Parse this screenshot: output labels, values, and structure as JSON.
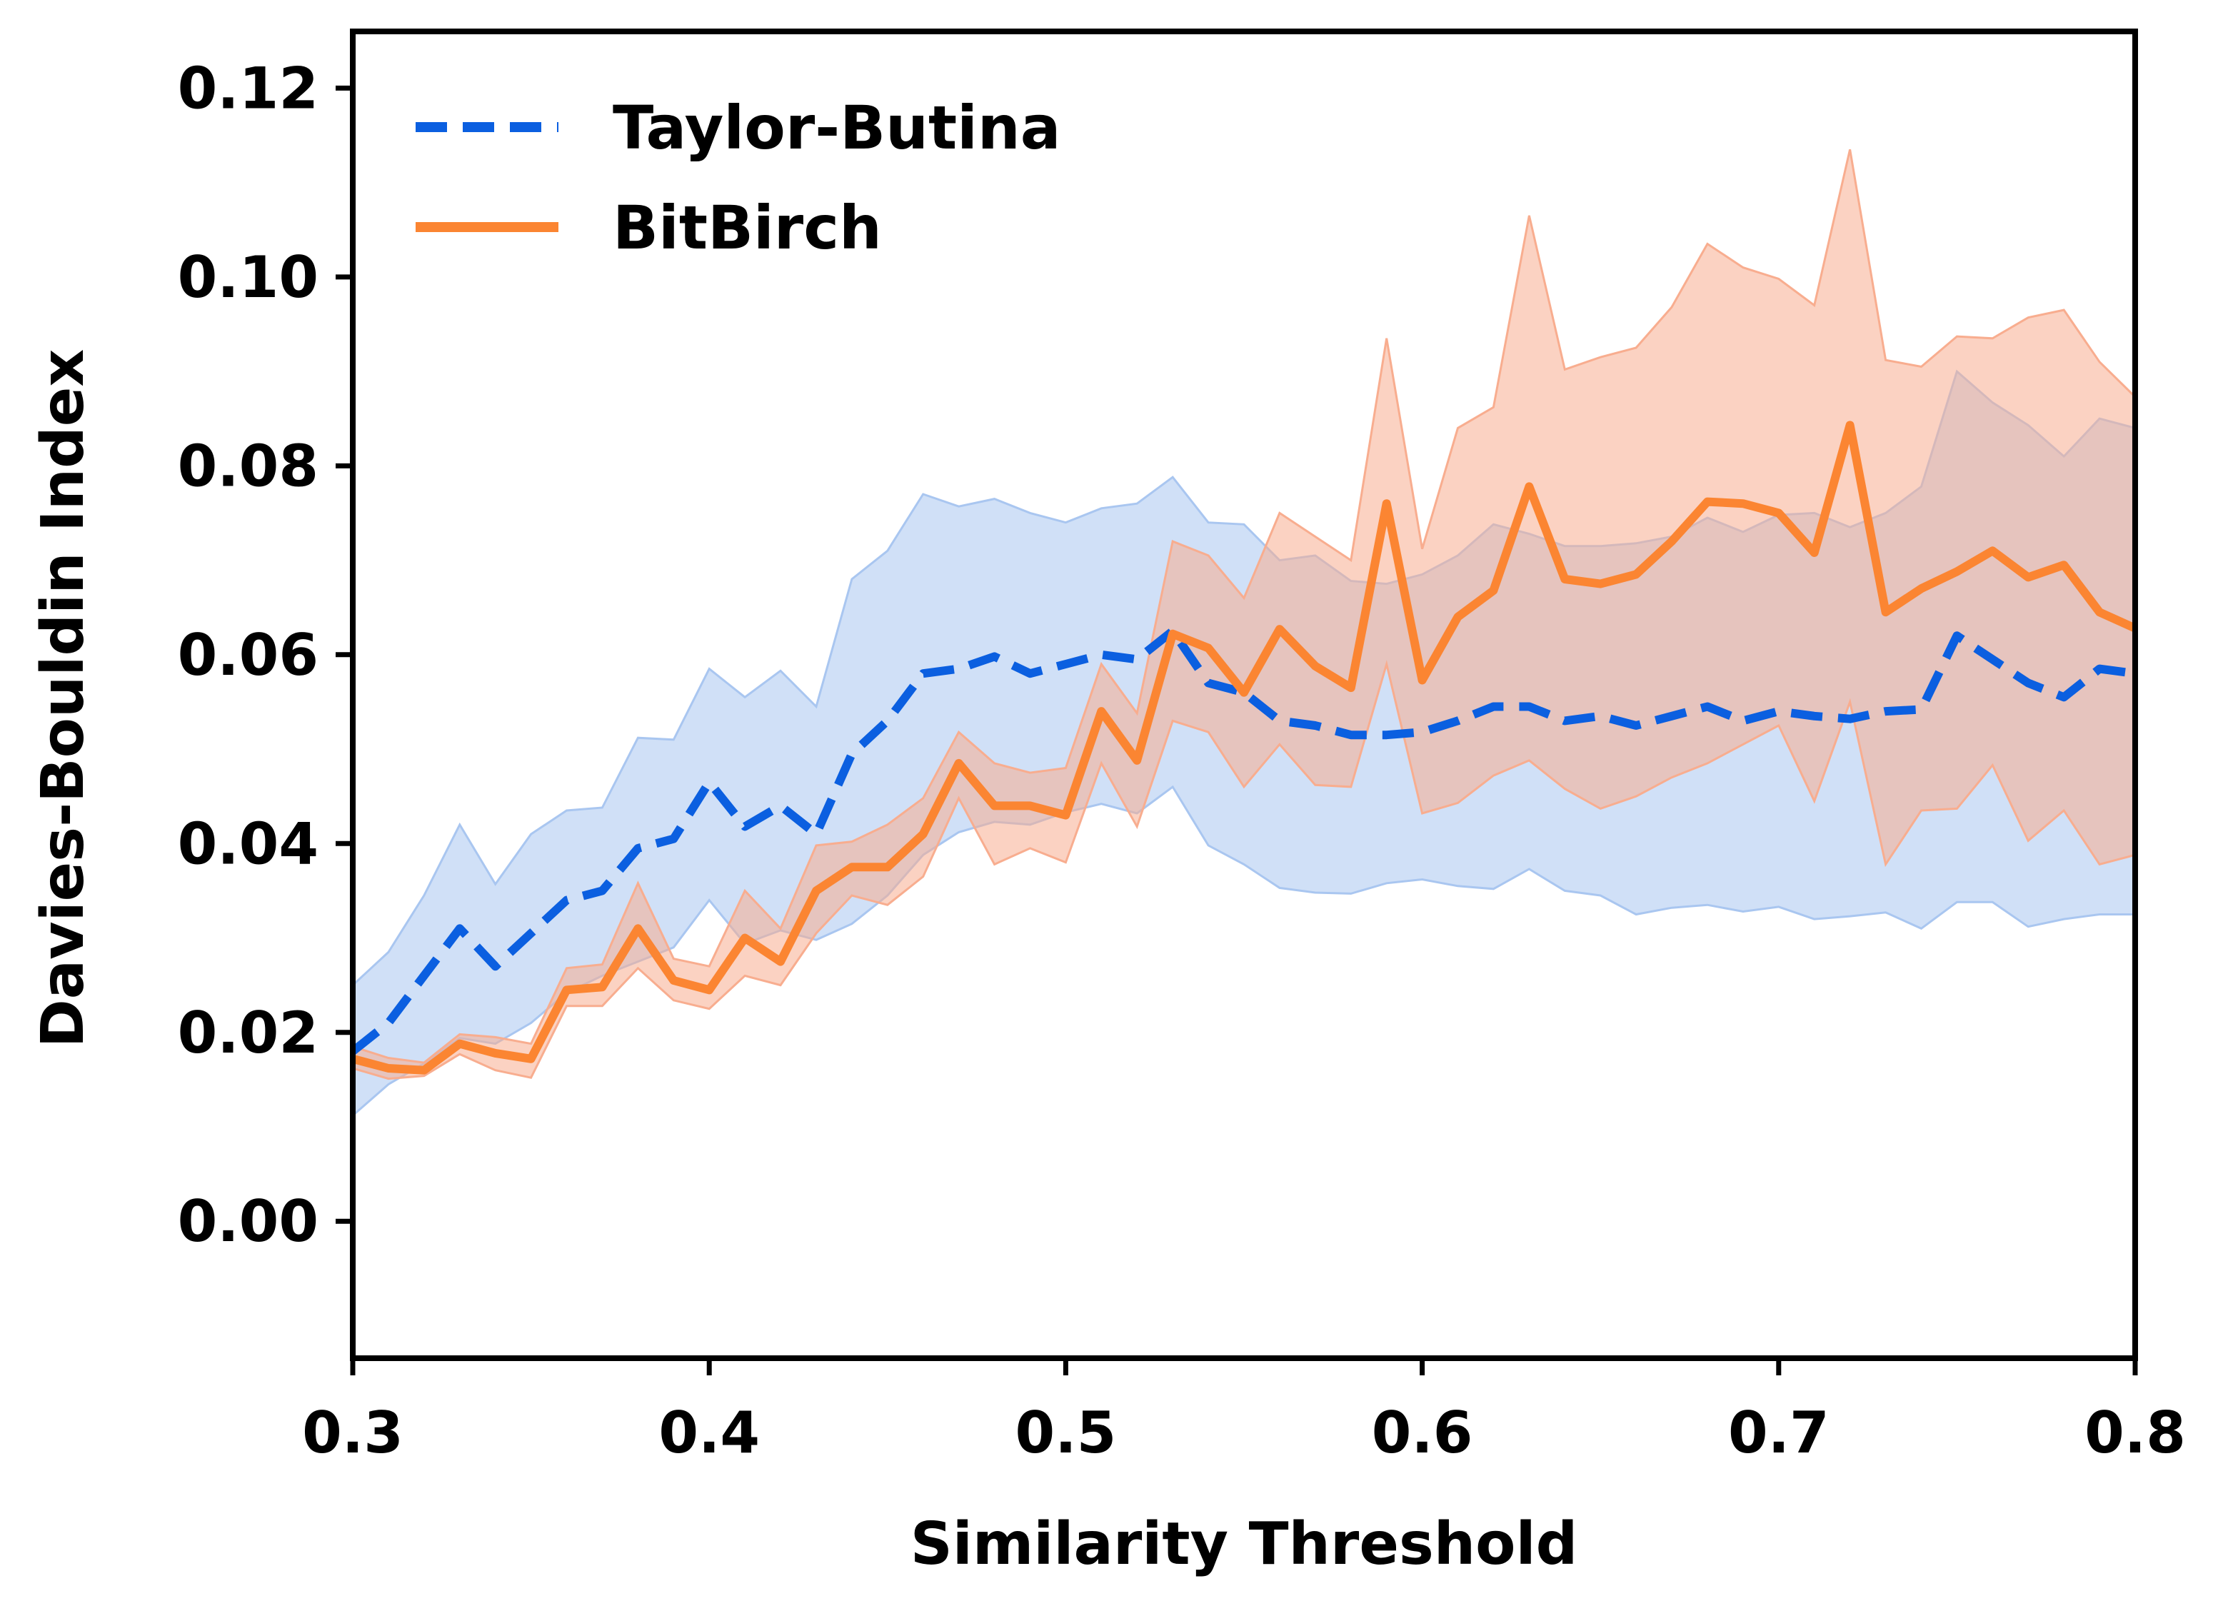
{
  "chart_data": {
    "type": "line",
    "xlabel": "Similarity Threshold",
    "ylabel": "Davies-Bouldin Index",
    "xlim": [
      0.3,
      0.8
    ],
    "ylim": [
      -0.0145,
      0.126
    ],
    "xticks": [
      0.3,
      0.4,
      0.5,
      0.6,
      0.7,
      0.8
    ],
    "xtick_labels": [
      "0.3",
      "0.4",
      "0.5",
      "0.6",
      "0.7",
      "0.8"
    ],
    "yticks": [
      0.0,
      0.02,
      0.04,
      0.06,
      0.08,
      0.1,
      0.12
    ],
    "ytick_labels": [
      "0.00",
      "0.02",
      "0.04",
      "0.06",
      "0.08",
      "0.10",
      "0.12"
    ],
    "grid": false,
    "legend_position": "top-left",
    "x": [
      0.3,
      0.31,
      0.32,
      0.33,
      0.34,
      0.35,
      0.36,
      0.37,
      0.38,
      0.39,
      0.4,
      0.41,
      0.42,
      0.43,
      0.44,
      0.45,
      0.46,
      0.47,
      0.48,
      0.49,
      0.5,
      0.51,
      0.52,
      0.53,
      0.54,
      0.55,
      0.56,
      0.57,
      0.58,
      0.59,
      0.6,
      0.61,
      0.62,
      0.63,
      0.64,
      0.65,
      0.66,
      0.67,
      0.68,
      0.69,
      0.7,
      0.71,
      0.72,
      0.73,
      0.74,
      0.75,
      0.76,
      0.77,
      0.78,
      0.79,
      0.8
    ],
    "series": [
      {
        "name": "Taylor-Butina",
        "color": "#0b5fe0",
        "band_color": "#a9c6f0",
        "linestyle": "dashed",
        "values": [
          0.018,
          0.021,
          0.026,
          0.031,
          0.027,
          0.0305,
          0.034,
          0.035,
          0.0395,
          0.0405,
          0.0465,
          0.0418,
          0.044,
          0.041,
          0.0495,
          0.053,
          0.058,
          0.0585,
          0.0598,
          0.058,
          0.059,
          0.06,
          0.0595,
          0.0625,
          0.057,
          0.056,
          0.053,
          0.0525,
          0.0515,
          0.0515,
          0.0518,
          0.053,
          0.0545,
          0.0545,
          0.053,
          0.0535,
          0.0525,
          0.0535,
          0.0545,
          0.053,
          0.054,
          0.0535,
          0.0532,
          0.054,
          0.0542,
          0.062,
          0.0595,
          0.057,
          0.0555,
          0.0585,
          0.058
        ],
        "upper": [
          0.025,
          0.0285,
          0.0345,
          0.042,
          0.0357,
          0.041,
          0.0435,
          0.0438,
          0.0512,
          0.051,
          0.0585,
          0.0555,
          0.0583,
          0.0545,
          0.068,
          0.071,
          0.077,
          0.0757,
          0.0765,
          0.075,
          0.074,
          0.0755,
          0.076,
          0.0788,
          0.074,
          0.0738,
          0.07,
          0.0705,
          0.0678,
          0.0675,
          0.0685,
          0.0705,
          0.0738,
          0.0728,
          0.0715,
          0.0715,
          0.0718,
          0.0725,
          0.0745,
          0.073,
          0.0748,
          0.075,
          0.0735,
          0.075,
          0.0778,
          0.09,
          0.0867,
          0.0843,
          0.081,
          0.085,
          0.084
        ],
        "lower": [
          0.0112,
          0.0145,
          0.0167,
          0.0194,
          0.0188,
          0.021,
          0.0242,
          0.026,
          0.0275,
          0.029,
          0.034,
          0.0294,
          0.0308,
          0.0298,
          0.0315,
          0.0345,
          0.0388,
          0.0412,
          0.0423,
          0.042,
          0.0433,
          0.0442,
          0.0432,
          0.046,
          0.0398,
          0.0378,
          0.0353,
          0.0348,
          0.0347,
          0.0358,
          0.0362,
          0.0355,
          0.0352,
          0.0373,
          0.035,
          0.0345,
          0.0325,
          0.0332,
          0.0335,
          0.0328,
          0.0333,
          0.032,
          0.0323,
          0.0327,
          0.031,
          0.0338,
          0.0338,
          0.0312,
          0.032,
          0.0325,
          0.0325
        ]
      },
      {
        "name": "BitBirch",
        "color": "#fb8532",
        "band_color": "#f8ad8f",
        "linestyle": "solid",
        "values": [
          0.0172,
          0.0162,
          0.016,
          0.0188,
          0.0178,
          0.0172,
          0.0245,
          0.0248,
          0.031,
          0.0255,
          0.0245,
          0.03,
          0.0275,
          0.035,
          0.0375,
          0.0375,
          0.041,
          0.0485,
          0.044,
          0.044,
          0.043,
          0.054,
          0.0488,
          0.0622,
          0.0607,
          0.056,
          0.0627,
          0.0588,
          0.0565,
          0.076,
          0.0573,
          0.064,
          0.0668,
          0.0778,
          0.068,
          0.0675,
          0.0685,
          0.072,
          0.0762,
          0.076,
          0.075,
          0.0708,
          0.0843,
          0.0645,
          0.067,
          0.0688,
          0.071,
          0.0682,
          0.0695,
          0.0645,
          0.0628
        ],
        "upper": [
          0.0185,
          0.0173,
          0.0168,
          0.0198,
          0.0195,
          0.0188,
          0.0268,
          0.0272,
          0.0358,
          0.0278,
          0.027,
          0.035,
          0.031,
          0.0398,
          0.0402,
          0.042,
          0.0448,
          0.0518,
          0.0485,
          0.0475,
          0.048,
          0.059,
          0.0538,
          0.072,
          0.0705,
          0.066,
          0.075,
          0.0725,
          0.07,
          0.0935,
          0.0712,
          0.084,
          0.0862,
          0.1065,
          0.0902,
          0.0915,
          0.0925,
          0.0968,
          0.1035,
          0.101,
          0.0998,
          0.097,
          0.1135,
          0.0912,
          0.0905,
          0.0937,
          0.0935,
          0.0957,
          0.0965,
          0.091,
          0.0873
        ],
        "lower": [
          0.0162,
          0.0151,
          0.0154,
          0.0177,
          0.016,
          0.0152,
          0.0228,
          0.0228,
          0.0268,
          0.0234,
          0.0225,
          0.026,
          0.025,
          0.0305,
          0.0345,
          0.0335,
          0.0365,
          0.0448,
          0.0378,
          0.0395,
          0.038,
          0.0485,
          0.0418,
          0.053,
          0.0518,
          0.046,
          0.0505,
          0.0462,
          0.046,
          0.059,
          0.0432,
          0.0443,
          0.0472,
          0.0488,
          0.0458,
          0.0437,
          0.045,
          0.047,
          0.0485,
          0.0505,
          0.0525,
          0.0445,
          0.055,
          0.0378,
          0.0435,
          0.0437,
          0.0483,
          0.0403,
          0.0435,
          0.0378,
          0.0388
        ]
      }
    ]
  }
}
